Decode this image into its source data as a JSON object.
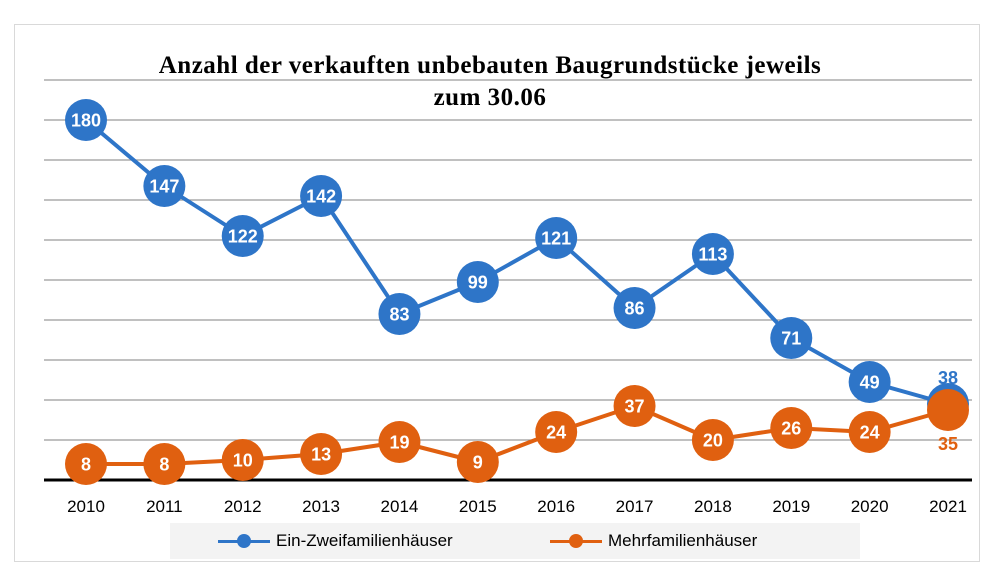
{
  "chart_data": {
    "type": "line",
    "title": "Anzahl der verkauften unbebauten Baugrundstücke jeweils\nzum 30.06",
    "xlabel": "",
    "ylabel": "",
    "categories": [
      "2010",
      "2011",
      "2012",
      "2013",
      "2014",
      "2015",
      "2016",
      "2017",
      "2018",
      "2019",
      "2020",
      "2021"
    ],
    "ylim": [
      0,
      200
    ],
    "grid": true,
    "legend_position": "bottom",
    "series": [
      {
        "name": "Ein-Zweifamilienhäuser",
        "color": "#2e75c8",
        "values": [
          180,
          147,
          122,
          142,
          83,
          99,
          121,
          86,
          113,
          71,
          49,
          38
        ]
      },
      {
        "name": "Mehrfamilienhäuser",
        "color": "#e06010",
        "values": [
          8,
          8,
          10,
          13,
          19,
          9,
          24,
          37,
          20,
          26,
          24,
          35
        ]
      }
    ]
  }
}
